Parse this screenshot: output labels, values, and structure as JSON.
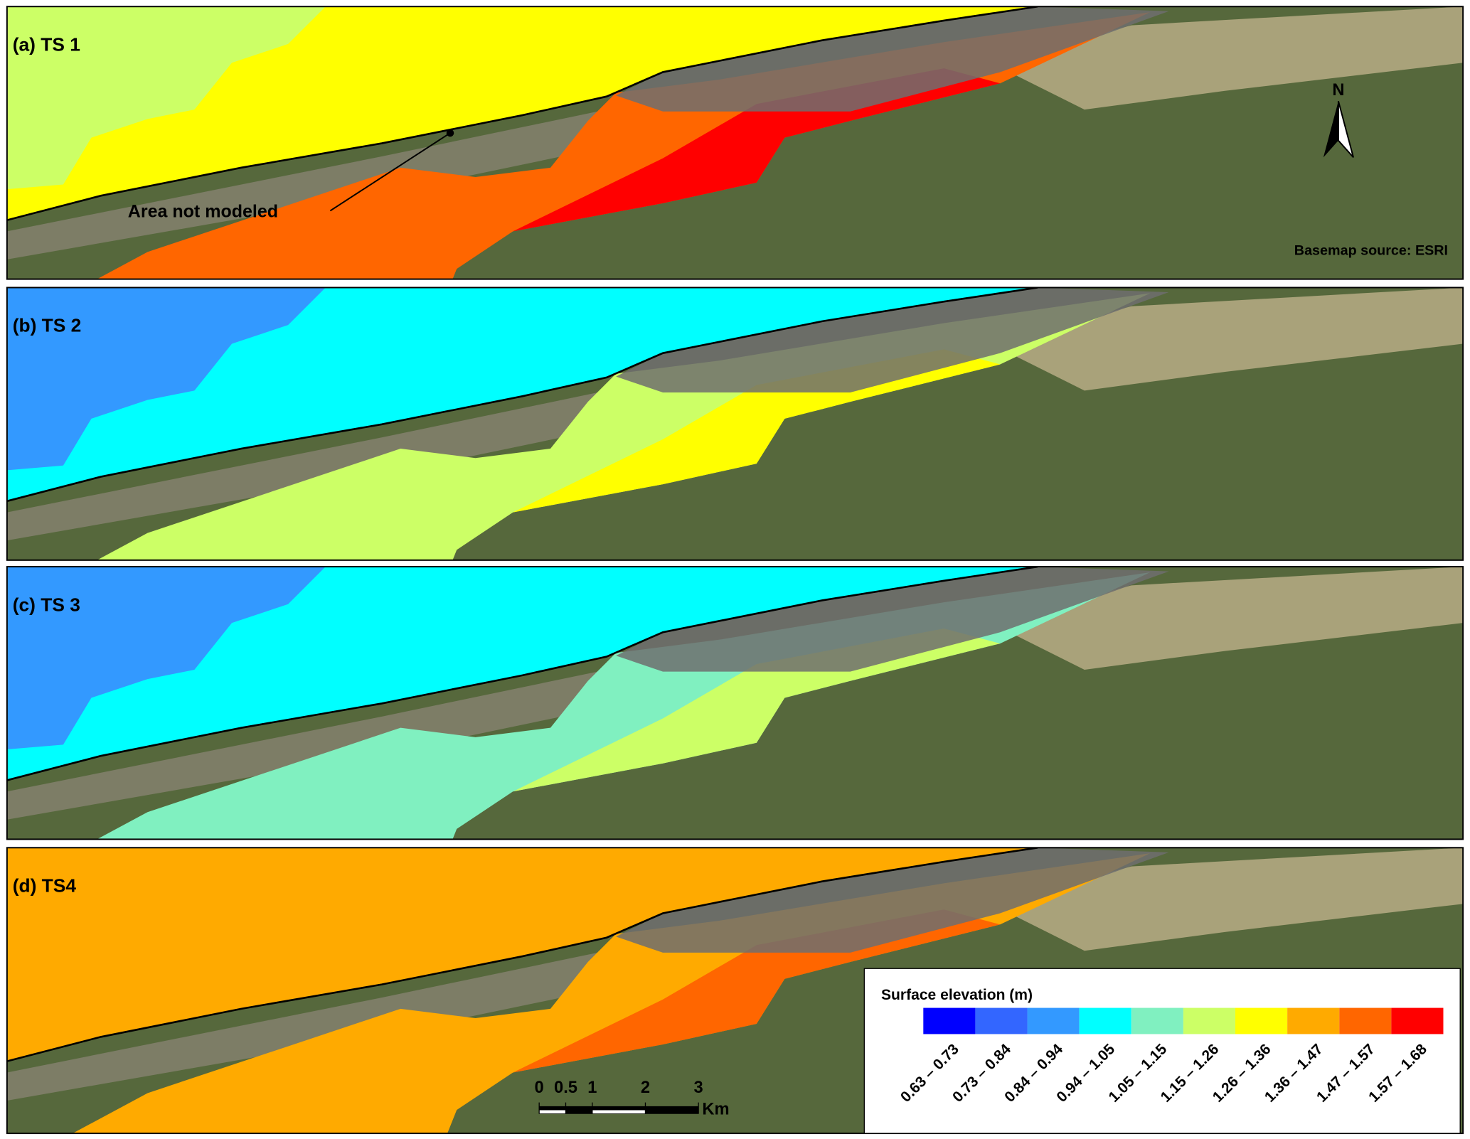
{
  "panels": [
    {
      "label": "(a) TS 1",
      "sea_color": "#ffff00",
      "sea_west_color": "#ccff66",
      "lagoon_color": "#ff6600",
      "inner_color": "#ff0000"
    },
    {
      "label": "(b) TS 2",
      "sea_color": "#00ffff",
      "sea_west_color": "#3399ff",
      "lagoon_color": "#ccff66",
      "inner_color": "#ffff00"
    },
    {
      "label": "(c) TS 3",
      "sea_color": "#00ffff",
      "sea_west_color": "#3399ff",
      "lagoon_color": "#80f0c0",
      "inner_color": "#ccff66"
    },
    {
      "label": "(d) TS4",
      "sea_color": "#ffaa00",
      "sea_west_color": "#ffaa00",
      "lagoon_color": "#ffaa00",
      "inner_color": "#ff6600"
    }
  ],
  "annotation": "Area not modeled",
  "basemap_source": "Basemap source: ESRI",
  "north_label": "N",
  "legend": {
    "title": "Surface elevation (m)",
    "classes": [
      {
        "label": "0.63 – 0.73",
        "color": "#0000ff"
      },
      {
        "label": "0.73 – 0.84",
        "color": "#3366ff"
      },
      {
        "label": "0.84 – 0.94",
        "color": "#3399ff"
      },
      {
        "label": "0.94 – 1.05",
        "color": "#00ffff"
      },
      {
        "label": "1.05 – 1.15",
        "color": "#80f0c0"
      },
      {
        "label": "1.15 – 1.26",
        "color": "#ccff66"
      },
      {
        "label": "1.26 – 1.36",
        "color": "#ffff00"
      },
      {
        "label": "1.36 – 1.47",
        "color": "#ffaa00"
      },
      {
        "label": "1.47 – 1.57",
        "color": "#ff6600"
      },
      {
        "label": "1.57 – 1.68",
        "color": "#ff0000"
      }
    ]
  },
  "scale_bar": {
    "ticks": [
      0,
      0.5,
      1,
      2,
      3
    ],
    "unit": "Km"
  }
}
